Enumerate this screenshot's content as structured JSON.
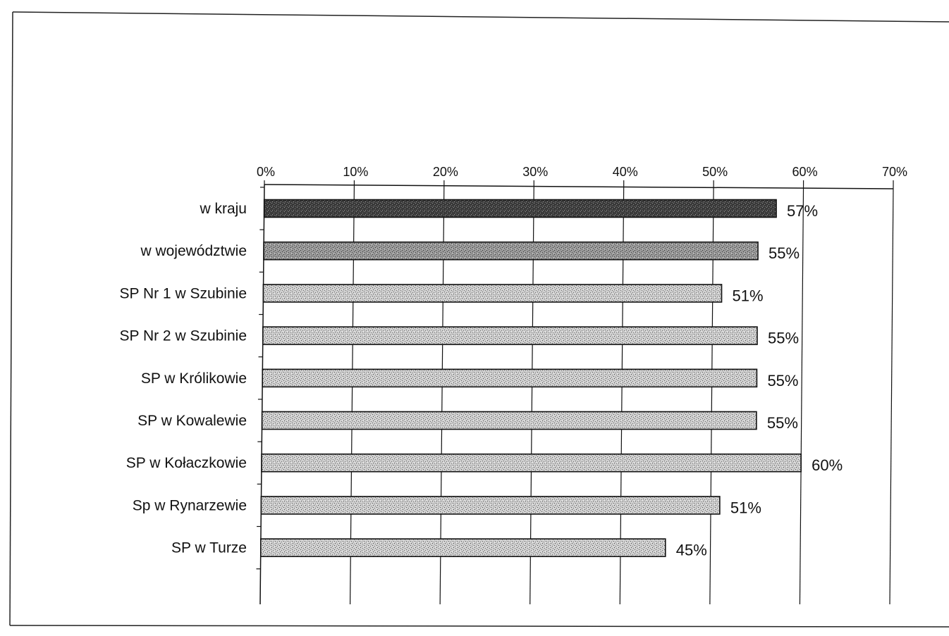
{
  "chart_data": {
    "type": "bar",
    "orientation": "horizontal",
    "categories": [
      "w kraju",
      "w województwie",
      "SP Nr 1 w Szubinie",
      "SP Nr 2 w Szubinie",
      "SP w Królikowie",
      "SP w Kowalewie",
      "SP w Kołaczkowie",
      "Sp w Rynarzewie",
      "SP w Turze"
    ],
    "values": [
      57,
      55,
      51,
      55,
      55,
      55,
      60,
      51,
      45
    ],
    "value_labels": [
      "57%",
      "55%",
      "51%",
      "55%",
      "55%",
      "55%",
      "60%",
      "51%",
      "45%"
    ],
    "xlim": [
      0,
      70
    ],
    "x_ticks": [
      0,
      10,
      20,
      30,
      40,
      50,
      60,
      70
    ],
    "x_tick_labels": [
      "0%",
      "10%",
      "20%",
      "30%",
      "40%",
      "50%",
      "60%",
      "70%"
    ],
    "x_axis_position": "top",
    "grid": true,
    "legend": false,
    "bar_pattern": "speckled",
    "colors": {
      "first_bar": "#3f3f3f",
      "second_bar": "#8a8a8a",
      "other_bars": "#bcbcbc",
      "bar_outline": "#111111",
      "grid": "#111111",
      "frame": "#222222"
    }
  }
}
